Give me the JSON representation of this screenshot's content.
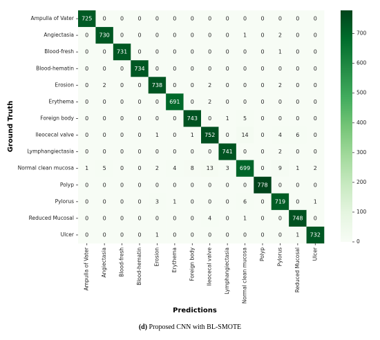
{
  "chart_data": {
    "type": "heatmap",
    "categories": [
      "Ampulla of Vater",
      "Angiectasia",
      "Blood-fresh",
      "Blood-hematin",
      "Erosion",
      "Erythema",
      "Foreign body",
      "Ileocecal valve",
      "Lymphangiectasia",
      "Normal clean mucosa",
      "Polyp",
      "Pylorus",
      "Reduced Mucosal",
      "Ulcer"
    ],
    "values": [
      [
        725,
        0,
        0,
        0,
        0,
        0,
        0,
        0,
        0,
        0,
        0,
        0,
        0,
        0
      ],
      [
        0,
        730,
        0,
        0,
        0,
        0,
        0,
        0,
        0,
        1,
        0,
        2,
        0,
        0
      ],
      [
        0,
        0,
        731,
        0,
        0,
        0,
        0,
        0,
        0,
        0,
        0,
        1,
        0,
        0
      ],
      [
        0,
        0,
        0,
        734,
        0,
        0,
        0,
        0,
        0,
        0,
        0,
        0,
        0,
        0
      ],
      [
        0,
        2,
        0,
        0,
        738,
        0,
        0,
        2,
        0,
        0,
        0,
        2,
        0,
        0
      ],
      [
        0,
        0,
        0,
        0,
        0,
        691,
        0,
        2,
        0,
        0,
        0,
        0,
        0,
        0
      ],
      [
        0,
        0,
        0,
        0,
        0,
        0,
        743,
        0,
        1,
        5,
        0,
        0,
        0,
        0
      ],
      [
        0,
        0,
        0,
        0,
        1,
        0,
        1,
        752,
        0,
        14,
        0,
        4,
        6,
        0
      ],
      [
        0,
        0,
        0,
        0,
        0,
        0,
        0,
        0,
        741,
        0,
        0,
        2,
        0,
        0
      ],
      [
        1,
        5,
        0,
        0,
        2,
        4,
        8,
        13,
        3,
        699,
        0,
        9,
        1,
        2
      ],
      [
        0,
        0,
        0,
        0,
        0,
        0,
        0,
        0,
        0,
        0,
        778,
        0,
        0,
        0
      ],
      [
        0,
        0,
        0,
        0,
        3,
        1,
        0,
        0,
        0,
        6,
        0,
        719,
        0,
        1
      ],
      [
        0,
        0,
        0,
        0,
        0,
        0,
        0,
        4,
        0,
        1,
        0,
        0,
        748,
        0
      ],
      [
        0,
        0,
        0,
        0,
        1,
        0,
        0,
        0,
        0,
        0,
        0,
        0,
        1,
        732
      ]
    ],
    "xlabel": "Predictions",
    "ylabel": "Ground Truth",
    "colormap": [
      "#f7fcf5",
      "#e5f5e0",
      "#c7e9c0",
      "#a1d99b",
      "#74c476",
      "#41ab5d",
      "#238b45",
      "#006d2c",
      "#00441b"
    ],
    "clim": [
      0,
      778
    ],
    "cticks": [
      0,
      100,
      200,
      300,
      400,
      500,
      600,
      700
    ],
    "caption": {
      "label": "(d)",
      "text": "Proposed CNN with BL-SMOTE"
    }
  }
}
